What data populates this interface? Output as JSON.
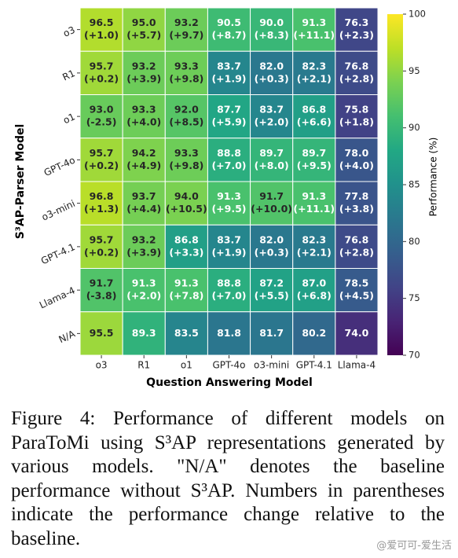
{
  "chart_data": {
    "type": "heatmap",
    "x_label": "Question Answering Model",
    "y_label": "S³AP-Parser Model",
    "colorbar_label": "Performance (%)",
    "colormap": "viridis",
    "x_categories": [
      "o3",
      "R1",
      "o1",
      "GPT-4o",
      "o3-mini",
      "GPT-4.1",
      "Llama-4"
    ],
    "y_categories": [
      "o3",
      "R1",
      "o1",
      "GPT-4o",
      "o3-mini",
      "GPT-4.1",
      "Llama-4",
      "N/A"
    ],
    "values": [
      [
        96.5,
        95.0,
        93.2,
        90.5,
        90.0,
        91.3,
        76.3
      ],
      [
        95.7,
        93.2,
        93.3,
        83.7,
        82.0,
        82.3,
        76.8
      ],
      [
        93.0,
        93.3,
        92.0,
        87.7,
        83.7,
        86.8,
        75.8
      ],
      [
        95.7,
        94.2,
        93.3,
        88.8,
        89.7,
        89.7,
        78.0
      ],
      [
        96.8,
        93.7,
        94.0,
        91.3,
        91.7,
        91.3,
        77.8
      ],
      [
        95.7,
        93.2,
        86.8,
        83.7,
        82.0,
        82.3,
        76.8
      ],
      [
        91.7,
        91.3,
        91.3,
        88.8,
        87.2,
        87.0,
        78.5
      ],
      [
        95.5,
        89.3,
        83.5,
        81.8,
        81.7,
        80.2,
        74.0
      ]
    ],
    "value_labels": [
      [
        "96.5",
        "95.0",
        "93.2",
        "90.5",
        "90.0",
        "91.3",
        "76.3"
      ],
      [
        "95.7",
        "93.2",
        "93.3",
        "83.7",
        "82.0",
        "82.3",
        "76.8"
      ],
      [
        "93.0",
        "93.3",
        "92.0",
        "87.7",
        "83.7",
        "86.8",
        "75.8"
      ],
      [
        "95.7",
        "94.2",
        "93.3",
        "88.8",
        "89.7",
        "89.7",
        "78.0"
      ],
      [
        "96.8",
        "93.7",
        "94.0",
        "91.3",
        "91.7",
        "91.3",
        "77.8"
      ],
      [
        "95.7",
        "93.2",
        "86.8",
        "83.7",
        "82.0",
        "82.3",
        "76.8"
      ],
      [
        "91.7",
        "91.3",
        "91.3",
        "88.8",
        "87.2",
        "87.0",
        "78.5"
      ],
      [
        "95.5",
        "89.3",
        "83.5",
        "81.8",
        "81.7",
        "80.2",
        "74.0"
      ]
    ],
    "change_labels": [
      [
        "(+1.0)",
        "(+5.7)",
        "(+9.7)",
        "(+8.7)",
        "(+8.3)",
        "(+11.1)",
        "(+2.3)"
      ],
      [
        "(+0.2)",
        "(+3.9)",
        "(+9.8)",
        "(+1.9)",
        "(+0.3)",
        "(+2.1)",
        "(+2.8)"
      ],
      [
        "(-2.5)",
        "(+4.0)",
        "(+8.5)",
        "(+5.9)",
        "(+2.0)",
        "(+6.6)",
        "(+1.8)"
      ],
      [
        "(+0.2)",
        "(+4.9)",
        "(+9.8)",
        "(+7.0)",
        "(+8.0)",
        "(+9.5)",
        "(+4.0)"
      ],
      [
        "(+1.3)",
        "(+4.4)",
        "(+10.5)",
        "(+9.5)",
        "(+10.0)",
        "(+11.1)",
        "(+3.8)"
      ],
      [
        "(+0.2)",
        "(+3.9)",
        "(+3.3)",
        "(+1.9)",
        "(+0.3)",
        "(+2.1)",
        "(+2.8)"
      ],
      [
        "(-3.8)",
        "(+2.0)",
        "(+7.8)",
        "(+7.0)",
        "(+5.5)",
        "(+6.8)",
        "(+4.5)"
      ],
      [
        null,
        null,
        null,
        null,
        null,
        null,
        null
      ]
    ],
    "clim": [
      70,
      100
    ],
    "cticks": [
      70,
      75,
      80,
      85,
      90,
      95,
      100
    ]
  },
  "caption": "Figure 4: Performance of different models on ParaToMi using S³AP representations generated by various models. \"N/A\" denotes the baseline performance without S³AP. Numbers in parentheses indicate the performance change relative to the baseline.",
  "watermark": "@爱可可-爱生活"
}
